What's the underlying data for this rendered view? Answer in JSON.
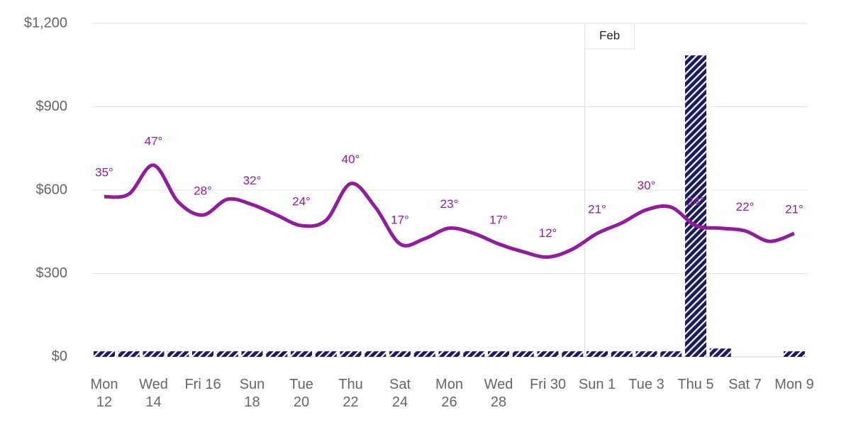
{
  "chart_data": {
    "type": "bar",
    "categories": [
      "Mon 12",
      null,
      "Wed 14",
      null,
      "Fri 16",
      null,
      "Sun 18",
      null,
      "Tue 20",
      null,
      "Thu 22",
      null,
      "Sat 24",
      null,
      "Mon 26",
      null,
      "Wed 28",
      null,
      "Fri 30",
      null,
      "Sun 1",
      null,
      "Tue 3",
      null,
      "Thu 5",
      null,
      "Sat 7",
      null,
      "Mon 9"
    ],
    "ylim": [
      0,
      1200
    ],
    "yticks": [
      {
        "value": 0,
        "label": "$0"
      },
      {
        "value": 300,
        "label": "$300"
      },
      {
        "value": 600,
        "label": "$600"
      },
      {
        "value": 900,
        "label": "$900"
      },
      {
        "value": 1200,
        "label": "$1,200"
      }
    ],
    "y2lim": [
      -26,
      101
    ],
    "grid": true,
    "annotations": [
      {
        "text": "Feb",
        "category_index": 20
      }
    ],
    "series": [
      {
        "type": "bar",
        "color": "#1b1b5e",
        "hatch": true,
        "values": [
          20,
          20,
          20,
          20,
          20,
          20,
          20,
          20,
          20,
          20,
          20,
          20,
          20,
          20,
          20,
          20,
          20,
          20,
          20,
          20,
          20,
          20,
          20,
          20,
          1085,
          30,
          0,
          0,
          20
        ]
      },
      {
        "type": "line",
        "axis": "y2",
        "color": "#8e1e9a",
        "values": [
          35,
          36,
          47,
          33,
          28,
          34,
          32,
          28,
          24,
          26,
          40,
          31,
          17,
          19,
          23,
          21,
          17,
          14,
          12,
          15,
          21,
          25,
          30,
          31,
          24,
          23,
          22,
          18,
          21
        ],
        "value_labels": [
          "35°",
          null,
          "47°",
          null,
          "28°",
          null,
          "32°",
          null,
          "24°",
          null,
          "40°",
          null,
          "17°",
          null,
          "23°",
          null,
          "17°",
          null,
          "12°",
          null,
          "21°",
          null,
          "30°",
          null,
          "24°",
          null,
          "22°",
          null,
          "21°"
        ]
      }
    ]
  }
}
